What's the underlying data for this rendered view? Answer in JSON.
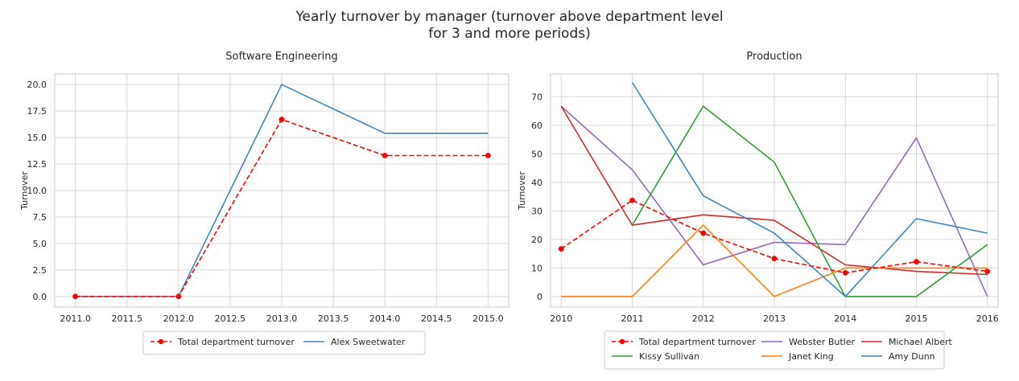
{
  "figure": {
    "title_line1": "Yearly turnover by manager (turnover above department level",
    "title_line2": "for 3 and more periods)"
  },
  "colors": {
    "total": "#ff0000",
    "blue": "#3a87c0",
    "red": "#d62728",
    "purple": "#9467bd",
    "green": "#2ca02c",
    "orange": "#ff7f0e"
  },
  "chart_data": [
    {
      "type": "line",
      "title": "Software Engineering",
      "xlabel": "",
      "ylabel": "Turnover",
      "xlim": [
        2010.8,
        2015.2
      ],
      "ylim": [
        -1.0,
        21.0
      ],
      "xticks": [
        2011.0,
        2011.5,
        2012.0,
        2012.5,
        2013.0,
        2013.5,
        2014.0,
        2014.5,
        2015.0
      ],
      "xtick_labels": [
        "2011.0",
        "2011.5",
        "2012.0",
        "2012.5",
        "2013.0",
        "2013.5",
        "2014.0",
        "2014.5",
        "2015.0"
      ],
      "yticks": [
        0,
        2.5,
        5,
        7.5,
        10,
        12.5,
        15,
        17.5,
        20
      ],
      "ytick_labels": [
        "0.0",
        "2.5",
        "5.0",
        "7.5",
        "10.0",
        "12.5",
        "15.0",
        "17.5",
        "20.0"
      ],
      "grid": true,
      "legend_position": "bottom-center",
      "legend_columns": 2,
      "series": [
        {
          "name": "Total department turnover",
          "style": "dashed-marker",
          "color_key": "total",
          "x": [
            2011,
            2012,
            2013,
            2014,
            2015
          ],
          "y": [
            0,
            0,
            16.7,
            13.3,
            13.3
          ]
        },
        {
          "name": "Alex Sweetwater",
          "style": "solid",
          "color_key": "blue",
          "x": [
            2011,
            2012,
            2013,
            2014,
            2015
          ],
          "y": [
            0,
            0,
            20.0,
            15.4,
            15.4
          ]
        }
      ]
    },
    {
      "type": "line",
      "title": "Production",
      "xlabel": "",
      "ylabel": "Turnover",
      "xlim": [
        2009.85,
        2016.15
      ],
      "ylim": [
        -3.7,
        78.0
      ],
      "xticks": [
        2010,
        2011,
        2012,
        2013,
        2014,
        2015,
        2016
      ],
      "xtick_labels": [
        "2010",
        "2011",
        "2012",
        "2013",
        "2014",
        "2015",
        "2016"
      ],
      "yticks": [
        0,
        10,
        20,
        30,
        40,
        50,
        60,
        70
      ],
      "ytick_labels": [
        "0",
        "10",
        "20",
        "30",
        "40",
        "50",
        "60",
        "70"
      ],
      "grid": true,
      "legend_position": "bottom-center",
      "legend_columns": 3,
      "series": [
        {
          "name": "Total department turnover",
          "style": "dashed-marker",
          "color_key": "total",
          "x": [
            2010,
            2011,
            2012,
            2013,
            2014,
            2015,
            2016
          ],
          "y": [
            16.7,
            33.7,
            22.2,
            13.3,
            8.3,
            12.2,
            8.8
          ]
        },
        {
          "name": "Webster Butler",
          "style": "solid",
          "color_key": "purple",
          "x": [
            2010,
            2011,
            2012,
            2013,
            2014,
            2015,
            2016
          ],
          "y": [
            66.7,
            44.4,
            11.1,
            19.0,
            18.2,
            55.6,
            0
          ]
        },
        {
          "name": "Michael Albert",
          "style": "solid",
          "color_key": "red",
          "x": [
            2010,
            2011,
            2012,
            2013,
            2014,
            2015,
            2016
          ],
          "y": [
            66.7,
            25.0,
            28.6,
            26.7,
            11.1,
            8.8,
            7.7
          ]
        },
        {
          "name": "Kissy Sullivan",
          "style": "solid",
          "color_key": "green",
          "x": [
            2011,
            2012,
            2013,
            2014,
            2015,
            2016
          ],
          "y": [
            25.0,
            66.7,
            47.1,
            0,
            0,
            18.2
          ]
        },
        {
          "name": "Janet King",
          "style": "solid",
          "color_key": "orange",
          "x": [
            2010,
            2011,
            2012,
            2013,
            2014,
            2015,
            2016
          ],
          "y": [
            0,
            0,
            25.0,
            0,
            10.0,
            10.0,
            10.0
          ]
        },
        {
          "name": "Amy Dunn",
          "style": "solid",
          "color_key": "blue",
          "x": [
            2011,
            2012,
            2013,
            2014,
            2015,
            2016
          ],
          "y": [
            75.0,
            35.3,
            22.2,
            0,
            27.3,
            22.2
          ]
        }
      ]
    }
  ]
}
